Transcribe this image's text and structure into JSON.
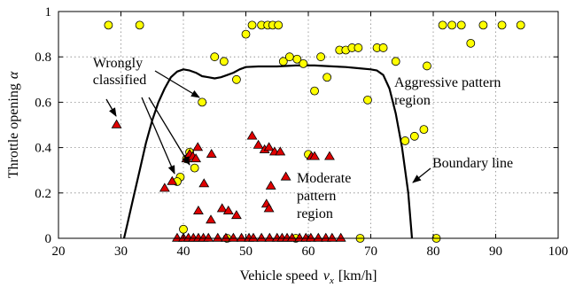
{
  "chart_data": {
    "type": "scatter",
    "title": "",
    "xlabel": "Vehicle speed",
    "xlabel_symbol": "v",
    "xlabel_subscript": "x",
    "xlabel_unit": "[km/h]",
    "ylabel": "Throttle opening",
    "ylabel_symbol": "α",
    "xlim": [
      20,
      100
    ],
    "ylim": [
      0,
      1
    ],
    "x_ticks": [
      20,
      30,
      40,
      50,
      60,
      70,
      80,
      90,
      100
    ],
    "y_ticks": [
      0,
      0.2,
      0.4,
      0.6,
      0.8,
      1
    ],
    "y_tick_labels": [
      "0",
      "0.2",
      "0.4",
      "0.6",
      "0.8",
      "1"
    ],
    "grid": true,
    "legend": "none",
    "colors": {
      "aggressive_marker": "#ffff00",
      "moderate_marker": "#e00000",
      "boundary_line": "#000000",
      "grid": "#888888"
    },
    "series": [
      {
        "marker": "circle",
        "color": "#ffff00",
        "points": [
          [
            28,
            0.94
          ],
          [
            33,
            0.94
          ],
          [
            50,
            0.9
          ],
          [
            51,
            0.94
          ],
          [
            52.5,
            0.94
          ],
          [
            53.5,
            0.94
          ],
          [
            54.3,
            0.94
          ],
          [
            55.2,
            0.94
          ],
          [
            45,
            0.8
          ],
          [
            46.5,
            0.78
          ],
          [
            48.5,
            0.7
          ],
          [
            56,
            0.78
          ],
          [
            57,
            0.8
          ],
          [
            58.2,
            0.79
          ],
          [
            59.2,
            0.77
          ],
          [
            62,
            0.8
          ],
          [
            65,
            0.83
          ],
          [
            66,
            0.83
          ],
          [
            67,
            0.84
          ],
          [
            68,
            0.84
          ],
          [
            71,
            0.84
          ],
          [
            72,
            0.84
          ],
          [
            74,
            0.78
          ],
          [
            79,
            0.76
          ],
          [
            81.5,
            0.94
          ],
          [
            83,
            0.94
          ],
          [
            84.5,
            0.94
          ],
          [
            86,
            0.86
          ],
          [
            88,
            0.94
          ],
          [
            91,
            0.94
          ],
          [
            94,
            0.94
          ],
          [
            61,
            0.65
          ],
          [
            63,
            0.71
          ],
          [
            69.5,
            0.61
          ],
          [
            43,
            0.6
          ],
          [
            75.5,
            0.43
          ],
          [
            77,
            0.45
          ],
          [
            78.5,
            0.48
          ],
          [
            41,
            0.38
          ],
          [
            40.5,
            0.35
          ],
          [
            39.5,
            0.27
          ],
          [
            39,
            0.25
          ],
          [
            41.8,
            0.31
          ],
          [
            60,
            0.37
          ],
          [
            40,
            0.04
          ],
          [
            47,
            0.0
          ],
          [
            58,
            0.0
          ],
          [
            68.3,
            0.0
          ],
          [
            80.5,
            0.0
          ]
        ]
      },
      {
        "marker": "triangle",
        "color": "#e00000",
        "points": [
          [
            29.3,
            0.5
          ],
          [
            37,
            0.22
          ],
          [
            38.2,
            0.25
          ],
          [
            40.5,
            0.35
          ],
          [
            41,
            0.37
          ],
          [
            41.5,
            0.36
          ],
          [
            42,
            0.35
          ],
          [
            42.3,
            0.4
          ],
          [
            43.3,
            0.24
          ],
          [
            44.5,
            0.37
          ],
          [
            42.4,
            0.12
          ],
          [
            44.4,
            0.08
          ],
          [
            46.2,
            0.13
          ],
          [
            47.2,
            0.12
          ],
          [
            48.5,
            0.1
          ],
          [
            51,
            0.45
          ],
          [
            52,
            0.41
          ],
          [
            53,
            0.39
          ],
          [
            53.7,
            0.4
          ],
          [
            54.6,
            0.38
          ],
          [
            55.5,
            0.38
          ],
          [
            54,
            0.23
          ],
          [
            53.3,
            0.15
          ],
          [
            53.7,
            0.13
          ],
          [
            56.4,
            0.27
          ],
          [
            60.5,
            0.36
          ],
          [
            61,
            0.36
          ],
          [
            63.4,
            0.36
          ],
          [
            39,
            0.0
          ],
          [
            40,
            0.0
          ],
          [
            40.8,
            0.0
          ],
          [
            41.6,
            0.0
          ],
          [
            42.4,
            0.0
          ],
          [
            43.2,
            0.0
          ],
          [
            44,
            0.0
          ],
          [
            45.5,
            0.0
          ],
          [
            46.8,
            0.0
          ],
          [
            48,
            0.0
          ],
          [
            49.3,
            0.0
          ],
          [
            50.5,
            0.0
          ],
          [
            51.2,
            0.0
          ],
          [
            52.5,
            0.0
          ],
          [
            53.8,
            0.0
          ],
          [
            55,
            0.0
          ],
          [
            55.8,
            0.0
          ],
          [
            56.6,
            0.0
          ],
          [
            57.4,
            0.0
          ],
          [
            58.6,
            0.0
          ],
          [
            59.6,
            0.0
          ],
          [
            60.4,
            0.0
          ],
          [
            61.6,
            0.0
          ],
          [
            62.8,
            0.0
          ],
          [
            63.8,
            0.0
          ],
          [
            65.2,
            0.0
          ]
        ]
      },
      {
        "name": "Boundary line",
        "marker": "line",
        "color": "#000000",
        "points": [
          [
            30.5,
            0.0
          ],
          [
            31,
            0.06
          ],
          [
            32,
            0.18
          ],
          [
            33,
            0.3
          ],
          [
            34,
            0.42
          ],
          [
            35,
            0.52
          ],
          [
            36,
            0.6
          ],
          [
            37,
            0.66
          ],
          [
            38,
            0.71
          ],
          [
            39,
            0.735
          ],
          [
            40,
            0.745
          ],
          [
            41,
            0.74
          ],
          [
            42,
            0.73
          ],
          [
            43,
            0.715
          ],
          [
            44,
            0.71
          ],
          [
            45,
            0.705
          ],
          [
            46,
            0.71
          ],
          [
            47,
            0.72
          ],
          [
            48,
            0.73
          ],
          [
            49,
            0.745
          ],
          [
            50,
            0.755
          ],
          [
            52,
            0.758
          ],
          [
            55,
            0.758
          ],
          [
            58,
            0.762
          ],
          [
            61,
            0.762
          ],
          [
            64,
            0.758
          ],
          [
            66,
            0.755
          ],
          [
            68,
            0.75
          ],
          [
            70,
            0.745
          ],
          [
            71,
            0.74
          ],
          [
            72,
            0.72
          ],
          [
            73,
            0.66
          ],
          [
            74,
            0.55
          ],
          [
            75,
            0.4
          ],
          [
            76,
            0.2
          ],
          [
            76.6,
            0.0
          ]
        ]
      }
    ],
    "annotations": [
      {
        "id": "wrong",
        "lines": [
          "Wrongly",
          "classified"
        ]
      },
      {
        "id": "aggr",
        "lines": [
          "Aggressive pattern",
          "region"
        ]
      },
      {
        "id": "mod",
        "lines": [
          "Moderate",
          "pattern",
          "region"
        ]
      },
      {
        "id": "bound",
        "lines": [
          "Boundary line"
        ]
      }
    ]
  }
}
